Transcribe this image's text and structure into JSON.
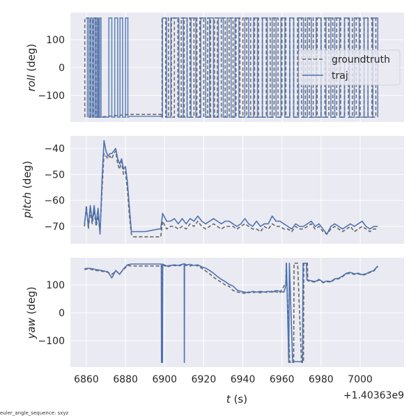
{
  "footer_text": "euler_angle_sequence: sxyz",
  "colors": {
    "groundtruth": "#666666",
    "traj": "#4c72b0",
    "panel_bg": "#eaeaf2",
    "grid": "#ffffff"
  },
  "chart_data": [
    {
      "type": "line",
      "name": "roll",
      "ylabel_italic": "roll",
      "ylabel_unit": " (deg)",
      "yticks": [
        100,
        0,
        -100
      ],
      "ytick_labels": [
        "100",
        "0",
        "−100"
      ],
      "ylim": [
        -195,
        195
      ],
      "xlim": [
        6852,
        7023
      ],
      "grid": true,
      "legend": {
        "placement": "center-right",
        "entries": [
          "groundtruth",
          "traj"
        ]
      },
      "series": [
        {
          "name": "groundtruth",
          "style": "dashed",
          "description_points": {
            "wrap_segments_t": [
              6859.2,
              6862,
              6863.5,
              6864.8,
              6866.2,
              6898.7,
              6900.5,
              6902,
              6903.5,
              6905,
              6906.8,
              6908.5,
              6910,
              6911.5,
              6913,
              6915,
              6916.5,
              6918,
              6920,
              6922,
              6923.5,
              6925.5,
              6927,
              6929,
              6931,
              6933,
              6935,
              6936.5,
              6938.5,
              6940,
              6942,
              6944,
              6946,
              6948,
              6950,
              6952,
              6954,
              6956,
              6958,
              6960,
              6962,
              6964,
              6966,
              6968,
              6970,
              6972,
              6974,
              6976,
              6978,
              6980,
              6982,
              6984,
              6986,
              6988,
              6990,
              6992,
              6994,
              6996,
              6998,
              7000,
              7002,
              7004,
              7006,
              7008
            ],
            "flat_t": [
              6882,
              6898
            ],
            "flat_value": -168
          }
        },
        {
          "name": "traj",
          "style": "solid",
          "description_points": {
            "wrap_segments_t": [
              6860.5,
              6861.3,
              6862.2,
              6863,
              6863.8,
              6864.6,
              6865.4,
              6866,
              6866.8,
              6867.5,
              6871.5,
              6873,
              6874.5,
              6876,
              6877.2,
              6878.5,
              6880,
              6881.2,
              6898.9,
              6901,
              6903.2,
              6907.3,
              6909.5,
              6911.5,
              6913.5,
              6916,
              6918.5,
              6921,
              6923,
              6925,
              6927.5,
              6930,
              6932,
              6934,
              6936,
              6938,
              6941,
              6943,
              6945.5,
              6947.5,
              6950,
              6952.5,
              6955,
              6957,
              6959.5,
              6961.5,
              6964,
              6966,
              6968.5,
              6971,
              6973,
              6975,
              6977.5,
              6980,
              6982.5,
              6985,
              6987,
              6989.5,
              6992,
              6994.5,
              6997,
              6999.5,
              7002,
              7004,
              7006.5,
              7009
            ],
            "flat_t": [
              6882,
              6898
            ],
            "flat_value": -175
          }
        }
      ]
    },
    {
      "type": "line",
      "name": "pitch",
      "ylabel_italic": "pitch",
      "ylabel_unit": " (deg)",
      "yticks": [
        -40,
        -50,
        -60,
        -70
      ],
      "ytick_labels": [
        "−40",
        "−50",
        "−60",
        "−70"
      ],
      "ylim": [
        -76.5,
        -35
      ],
      "xlim": [
        6852,
        7023
      ],
      "grid": true,
      "series": [
        {
          "name": "groundtruth",
          "style": "dashed",
          "x": [
            6859,
            6860,
            6861,
            6862,
            6863,
            6864,
            6865,
            6866,
            6867,
            6868,
            6869,
            6870,
            6871,
            6872,
            6873,
            6874,
            6875,
            6876,
            6877,
            6878,
            6879,
            6880,
            6881,
            6882,
            6883,
            6884,
            6890,
            6897,
            6898,
            6899,
            6901,
            6903,
            6905,
            6907,
            6909,
            6911,
            6913,
            6915,
            6917,
            6919,
            6921,
            6923,
            6925,
            6927,
            6929,
            6931,
            6933,
            6935,
            6937,
            6939,
            6941,
            6943,
            6945,
            6947,
            6949,
            6951,
            6953,
            6955,
            6957,
            6959,
            6961,
            6963,
            6965,
            6967,
            6969,
            6971,
            6973,
            6975,
            6977,
            6979,
            6981,
            6983,
            6985,
            6987,
            6989,
            6991,
            6993,
            6995,
            6997,
            6999,
            7001,
            7003,
            7005,
            7007,
            7009
          ],
          "y": [
            -70,
            -62,
            -71,
            -64,
            -69,
            -64,
            -70,
            -66,
            -72,
            -56,
            -42,
            -43,
            -44,
            -43,
            -44,
            -42,
            -41,
            -46,
            -48,
            -45,
            -50,
            -49,
            -56,
            -66,
            -73,
            -74,
            -74,
            -74,
            -74,
            -68,
            -71,
            -70,
            -70,
            -71,
            -70,
            -71,
            -69,
            -70,
            -68,
            -70,
            -71,
            -70,
            -69,
            -70,
            -71,
            -70,
            -70,
            -70,
            -71,
            -70,
            -69,
            -70,
            -71,
            -71,
            -72,
            -70,
            -71,
            -69,
            -70,
            -70,
            -71,
            -71,
            -72,
            -70,
            -71,
            -71,
            -70,
            -69,
            -71,
            -70,
            -72,
            -73,
            -71,
            -70,
            -71,
            -72,
            -71,
            -70,
            -72,
            -71,
            -70,
            -71,
            -72,
            -71,
            -71
          ]
        },
        {
          "name": "traj",
          "style": "solid",
          "x": [
            6859,
            6860,
            6861,
            6862,
            6863,
            6864,
            6865,
            6866,
            6867,
            6868,
            6869,
            6870,
            6871,
            6872,
            6873,
            6874,
            6875,
            6876,
            6877,
            6878,
            6879,
            6880,
            6881,
            6882,
            6883,
            6884,
            6890,
            6897,
            6898,
            6899,
            6901,
            6903,
            6905,
            6907,
            6909,
            6911,
            6913,
            6915,
            6917,
            6919,
            6921,
            6923,
            6925,
            6927,
            6929,
            6931,
            6933,
            6935,
            6937,
            6939,
            6941,
            6943,
            6945,
            6947,
            6949,
            6951,
            6953,
            6955,
            6957,
            6959,
            6961,
            6963,
            6965,
            6967,
            6969,
            6971,
            6973,
            6975,
            6977,
            6979,
            6981,
            6983,
            6985,
            6987,
            6989,
            6991,
            6993,
            6995,
            6997,
            6999,
            7001,
            7003,
            7005,
            7007,
            7009
          ],
          "y": [
            -69,
            -63,
            -70,
            -62,
            -68,
            -62,
            -69,
            -63,
            -73,
            -52,
            -37,
            -41,
            -43,
            -42,
            -42,
            -41,
            -40,
            -44,
            -46,
            -44,
            -48,
            -47,
            -53,
            -63,
            -72,
            -72,
            -72,
            -71,
            -71,
            -65,
            -68,
            -68,
            -67,
            -69,
            -67,
            -69,
            -67,
            -68,
            -66,
            -68,
            -69,
            -68,
            -67,
            -68,
            -69,
            -68,
            -68,
            -69,
            -70,
            -69,
            -67,
            -69,
            -70,
            -68,
            -70,
            -69,
            -69,
            -66,
            -68,
            -68,
            -69,
            -70,
            -71,
            -69,
            -70,
            -70,
            -69,
            -68,
            -70,
            -69,
            -71,
            -73,
            -70,
            -69,
            -70,
            -71,
            -70,
            -69,
            -70,
            -69,
            -68,
            -70,
            -71,
            -70,
            -70
          ]
        }
      ]
    },
    {
      "type": "line",
      "name": "yaw",
      "ylabel_italic": "yaw",
      "ylabel_unit": " (deg)",
      "yticks": [
        100,
        0,
        -100
      ],
      "ytick_labels": [
        "100",
        "0",
        "−100"
      ],
      "ylim": [
        -195,
        195
      ],
      "xlim": [
        6852,
        7023
      ],
      "grid": true,
      "xticks": [
        6860,
        6880,
        6900,
        6920,
        6940,
        6960,
        6980,
        7000
      ],
      "xtick_labels": [
        "6860",
        "6880",
        "6900",
        "6920",
        "6940",
        "6960",
        "6980",
        "7000"
      ],
      "xlabel_italic": "t",
      "xlabel_unit": " (s)",
      "x_offset_label": "+1.40363e9",
      "series": [
        {
          "name": "groundtruth",
          "style": "dashed",
          "x": [
            6859,
            6861,
            6863,
            6865,
            6867,
            6869,
            6871,
            6873,
            6875,
            6877,
            6879,
            6881,
            6883,
            6890,
            6897,
            6898.5,
            6898.6,
            6898.8,
            6899,
            6901,
            6903,
            6905,
            6907,
            6909,
            6911,
            6913,
            6915,
            6917,
            6919,
            6921,
            6923,
            6925,
            6927,
            6929,
            6931,
            6933,
            6935,
            6937,
            6939,
            6941,
            6943,
            6945,
            6947,
            6949,
            6951,
            6953,
            6955,
            6957,
            6959,
            6961,
            6962,
            6962.2,
            6964,
            6966,
            6966.2,
            6968,
            6970,
            6971,
            6971.2,
            6973,
            6973.2,
            6975,
            6977,
            6979,
            6981,
            6983,
            6985,
            6987,
            6989,
            6991,
            6993,
            6995,
            6997,
            6999,
            7001,
            7003,
            7005,
            7007,
            7009
          ],
          "y": [
            155,
            158,
            155,
            152,
            150,
            148,
            145,
            138,
            150,
            140,
            155,
            170,
            168,
            168,
            168,
            170,
            -178,
            -178,
            172,
            165,
            168,
            170,
            168,
            172,
            170,
            168,
            172,
            168,
            160,
            150,
            140,
            128,
            118,
            110,
            100,
            95,
            80,
            75,
            72,
            70,
            75,
            72,
            75,
            72,
            75,
            72,
            78,
            75,
            72,
            95,
            110,
            178,
            -178,
            -178,
            178,
            178,
            -178,
            -178,
            178,
            178,
            115,
            112,
            110,
            118,
            108,
            112,
            110,
            120,
            122,
            130,
            140,
            142,
            138,
            140,
            135,
            138,
            145,
            150,
            165
          ]
        },
        {
          "name": "traj",
          "style": "solid",
          "x": [
            6859,
            6861,
            6863,
            6865,
            6867,
            6869,
            6871,
            6873,
            6875,
            6877,
            6879,
            6881,
            6883,
            6890,
            6897,
            6898.3,
            6898.4,
            6898.9,
            6899,
            6901,
            6903,
            6905,
            6907,
            6909,
            6910,
            6910.1,
            6910.2,
            6911,
            6913,
            6915,
            6917,
            6919,
            6921,
            6923,
            6925,
            6927,
            6929,
            6931,
            6933,
            6935,
            6937,
            6939,
            6941,
            6943,
            6945,
            6947,
            6949,
            6951,
            6953,
            6955,
            6957,
            6959,
            6961,
            6962,
            6962.3,
            6963.5,
            6963.8,
            6965.5,
            6965.8,
            6970.5,
            6970.8,
            6972.5,
            6972.8,
            6975,
            6977,
            6979,
            6981,
            6983,
            6985,
            6987,
            6989,
            6991,
            6993,
            6995,
            6997,
            6999,
            7001,
            7003,
            7005,
            7007,
            7009
          ],
          "y": [
            158,
            160,
            158,
            155,
            153,
            150,
            147,
            125,
            152,
            138,
            158,
            172,
            175,
            175,
            175,
            175,
            -178,
            -178,
            175,
            168,
            170,
            172,
            170,
            174,
            176,
            -178,
            176,
            172,
            174,
            170,
            172,
            165,
            160,
            152,
            142,
            130,
            120,
            112,
            102,
            96,
            82,
            77,
            74,
            72,
            77,
            74,
            77,
            74,
            77,
            74,
            80,
            77,
            74,
            98,
            178,
            -178,
            178,
            -178,
            -175,
            -175,
            178,
            178,
            118,
            115,
            112,
            120,
            110,
            114,
            112,
            122,
            124,
            132,
            142,
            145,
            140,
            142,
            137,
            140,
            147,
            152,
            168
          ]
        }
      ]
    }
  ]
}
